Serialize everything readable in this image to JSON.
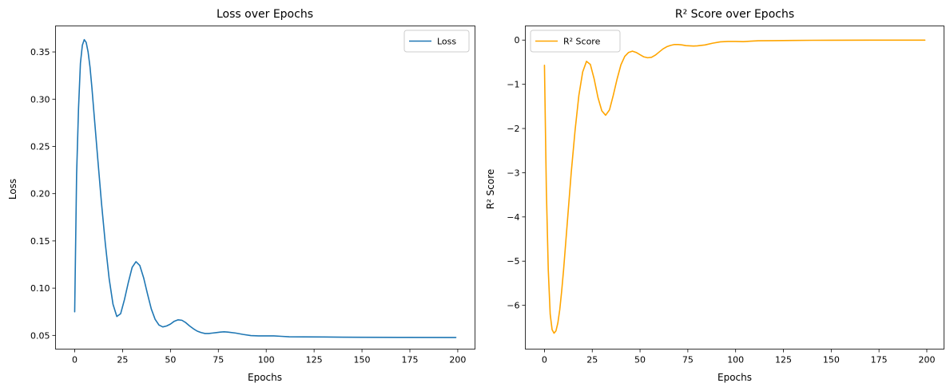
{
  "chart_data": [
    {
      "type": "line",
      "title": "Loss over Epochs",
      "xlabel": "Epochs",
      "ylabel": "Loss",
      "xlim": [
        -10,
        209
      ],
      "ylim": [
        0.0355,
        0.3775
      ],
      "xticks": [
        0,
        25,
        50,
        75,
        100,
        125,
        150,
        175,
        200
      ],
      "yticks": [
        0.05,
        0.1,
        0.15,
        0.2,
        0.25,
        0.3,
        0.35
      ],
      "ytick_labels": [
        "0.05",
        "0.10",
        "0.15",
        "0.20",
        "0.25",
        "0.30",
        "0.35"
      ],
      "grid": false,
      "legend_position": "top-right",
      "series": [
        {
          "name": "Loss",
          "color": "#1f77b4",
          "points": [
            [
              0,
              0.075
            ],
            [
              1,
              0.22
            ],
            [
              2,
              0.29
            ],
            [
              3,
              0.338
            ],
            [
              4,
              0.357
            ],
            [
              5,
              0.363
            ],
            [
              6,
              0.36
            ],
            [
              7,
              0.35
            ],
            [
              8,
              0.334
            ],
            [
              9,
              0.312
            ],
            [
              10,
              0.287
            ],
            [
              12,
              0.238
            ],
            [
              14,
              0.19
            ],
            [
              16,
              0.147
            ],
            [
              18,
              0.11
            ],
            [
              20,
              0.083
            ],
            [
              22,
              0.07
            ],
            [
              24,
              0.073
            ],
            [
              26,
              0.088
            ],
            [
              28,
              0.106
            ],
            [
              30,
              0.122
            ],
            [
              32,
              0.128
            ],
            [
              34,
              0.124
            ],
            [
              36,
              0.111
            ],
            [
              38,
              0.094
            ],
            [
              40,
              0.078
            ],
            [
              42,
              0.067
            ],
            [
              44,
              0.061
            ],
            [
              46,
              0.059
            ],
            [
              48,
              0.06
            ],
            [
              50,
              0.062
            ],
            [
              52,
              0.065
            ],
            [
              54,
              0.0665
            ],
            [
              56,
              0.066
            ],
            [
              58,
              0.0635
            ],
            [
              60,
              0.06
            ],
            [
              62,
              0.057
            ],
            [
              64,
              0.0545
            ],
            [
              66,
              0.053
            ],
            [
              68,
              0.052
            ],
            [
              70,
              0.052
            ],
            [
              72,
              0.0525
            ],
            [
              74,
              0.053
            ],
            [
              76,
              0.0535
            ],
            [
              78,
              0.0538
            ],
            [
              80,
              0.0535
            ],
            [
              84,
              0.0525
            ],
            [
              88,
              0.051
            ],
            [
              92,
              0.0498
            ],
            [
              96,
              0.0495
            ],
            [
              100,
              0.0495
            ],
            [
              104,
              0.0495
            ],
            [
              108,
              0.049
            ],
            [
              112,
              0.0485
            ],
            [
              120,
              0.0484
            ],
            [
              130,
              0.0483
            ],
            [
              140,
              0.0481
            ],
            [
              150,
              0.048
            ],
            [
              170,
              0.0479
            ],
            [
              199,
              0.0478
            ]
          ]
        }
      ]
    },
    {
      "type": "line",
      "title": "R² Score over Epochs",
      "xlabel": "Epochs",
      "ylabel": "R² Score",
      "xlim": [
        -10,
        209
      ],
      "ylim": [
        -6.99,
        0.32
      ],
      "xticks": [
        0,
        25,
        50,
        75,
        100,
        125,
        150,
        175,
        200
      ],
      "yticks": [
        0,
        -1,
        -2,
        -3,
        -4,
        -5,
        -6
      ],
      "ytick_labels": [
        "0",
        "−1",
        "−2",
        "−3",
        "−4",
        "−5",
        "−6"
      ],
      "grid": false,
      "legend_position": "top-left",
      "series": [
        {
          "name": "R² Score",
          "color": "#ffa500",
          "points": [
            [
              0,
              -0.57
            ],
            [
              1,
              -3.4
            ],
            [
              2,
              -5.2
            ],
            [
              3,
              -6.2
            ],
            [
              4,
              -6.55
            ],
            [
              5,
              -6.63
            ],
            [
              6,
              -6.58
            ],
            [
              7,
              -6.4
            ],
            [
              8,
              -6.1
            ],
            [
              9,
              -5.68
            ],
            [
              10,
              -5.2
            ],
            [
              12,
              -4.1
            ],
            [
              14,
              -3.0
            ],
            [
              16,
              -2.05
            ],
            [
              18,
              -1.25
            ],
            [
              20,
              -0.72
            ],
            [
              22,
              -0.48
            ],
            [
              24,
              -0.55
            ],
            [
              26,
              -0.88
            ],
            [
              28,
              -1.3
            ],
            [
              30,
              -1.6
            ],
            [
              32,
              -1.7
            ],
            [
              34,
              -1.58
            ],
            [
              36,
              -1.25
            ],
            [
              38,
              -0.88
            ],
            [
              40,
              -0.56
            ],
            [
              42,
              -0.37
            ],
            [
              44,
              -0.28
            ],
            [
              46,
              -0.25
            ],
            [
              48,
              -0.28
            ],
            [
              50,
              -0.33
            ],
            [
              52,
              -0.38
            ],
            [
              54,
              -0.4
            ],
            [
              56,
              -0.39
            ],
            [
              58,
              -0.34
            ],
            [
              60,
              -0.27
            ],
            [
              62,
              -0.2
            ],
            [
              64,
              -0.15
            ],
            [
              66,
              -0.12
            ],
            [
              68,
              -0.1
            ],
            [
              70,
              -0.1
            ],
            [
              72,
              -0.11
            ],
            [
              74,
              -0.125
            ],
            [
              76,
              -0.13
            ],
            [
              78,
              -0.135
            ],
            [
              80,
              -0.13
            ],
            [
              84,
              -0.11
            ],
            [
              88,
              -0.07
            ],
            [
              92,
              -0.04
            ],
            [
              96,
              -0.03
            ],
            [
              100,
              -0.03
            ],
            [
              104,
              -0.035
            ],
            [
              108,
              -0.025
            ],
            [
              112,
              -0.015
            ],
            [
              120,
              -0.012
            ],
            [
              130,
              -0.008
            ],
            [
              140,
              -0.005
            ],
            [
              150,
              -0.003
            ],
            [
              170,
              -0.002
            ],
            [
              199,
              -0.001
            ]
          ]
        }
      ]
    }
  ]
}
